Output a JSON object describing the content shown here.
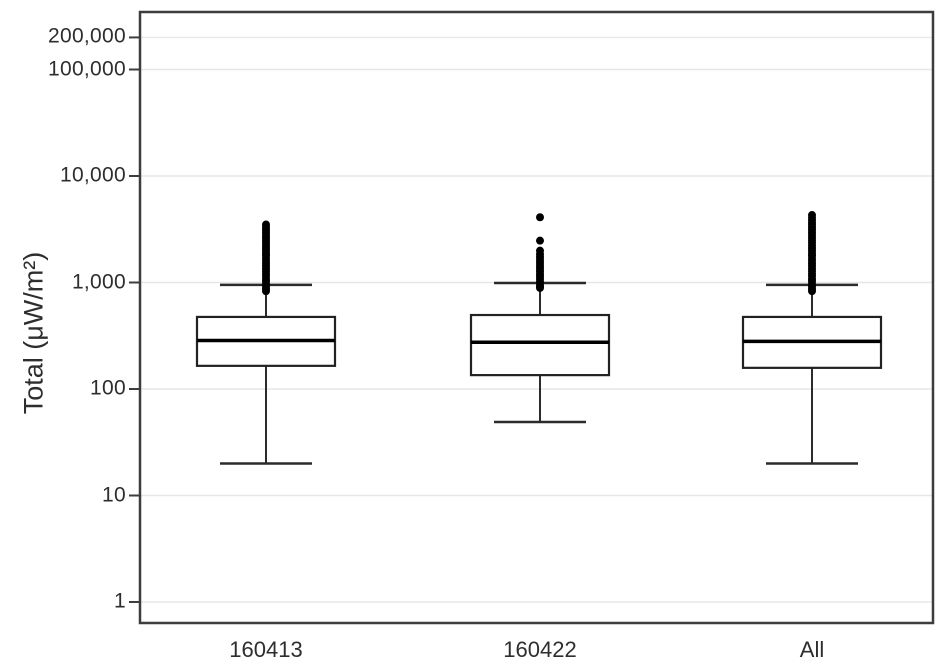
{
  "figure": {
    "background": "#ffffff"
  },
  "chart_data": {
    "type": "box",
    "title": "",
    "xlabel": "",
    "ylabel": "Total (μW/m²)",
    "y_scale": "log10",
    "grid": true,
    "legend": "none",
    "ylim": [
      0.6,
      350000
    ],
    "y_ticks": [
      {
        "value": 200000,
        "label": "200,000"
      },
      {
        "value": 100000,
        "label": "100,000"
      },
      {
        "value": 10000,
        "label": "10,000"
      },
      {
        "value": 1000,
        "label": "1,000"
      },
      {
        "value": 100,
        "label": "100"
      },
      {
        "value": 10,
        "label": "10"
      },
      {
        "value": 1,
        "label": "1"
      }
    ],
    "colors": {
      "frame": "#3d3d3d",
      "gridline": "#e7e7e7",
      "box_stroke": "#222222",
      "box_fill": "#ffffff",
      "median": "#000000",
      "whisker": "#2b2b2b",
      "outlier": "#000000",
      "text": "#2e2e2e"
    },
    "groups": [
      {
        "label": "160413",
        "whisker_low": 20,
        "q1": 165,
        "median": 285,
        "q3": 475,
        "whisker_high": 950,
        "outliers": [
          3500,
          3300,
          3120,
          2950,
          2790,
          2640,
          2500,
          2360,
          2230,
          2110,
          2000,
          1890,
          1790,
          1690,
          1600,
          1510,
          1430,
          1350,
          1280,
          1210,
          1150,
          1080,
          1030,
          970,
          920,
          870,
          830
        ]
      },
      {
        "label": "160422",
        "whisker_low": 49,
        "q1": 135,
        "median": 275,
        "q3": 495,
        "whisker_high": 990,
        "outliers": [
          4100,
          2470,
          1990,
          1850,
          1750,
          1660,
          1570,
          1490,
          1410,
          1340,
          1270,
          1200,
          1140,
          1080,
          1020,
          970,
          920,
          890
        ]
      },
      {
        "label": "All",
        "whisker_low": 20,
        "q1": 158,
        "median": 280,
        "q3": 475,
        "whisker_high": 950,
        "outliers": [
          4300,
          4060,
          3850,
          3640,
          3490,
          3300,
          3120,
          2950,
          2790,
          2640,
          2500,
          2360,
          2230,
          2110,
          2000,
          1890,
          1790,
          1690,
          1600,
          1510,
          1430,
          1350,
          1280,
          1210,
          1150,
          1080,
          1030,
          970,
          920,
          870,
          830
        ]
      }
    ]
  }
}
